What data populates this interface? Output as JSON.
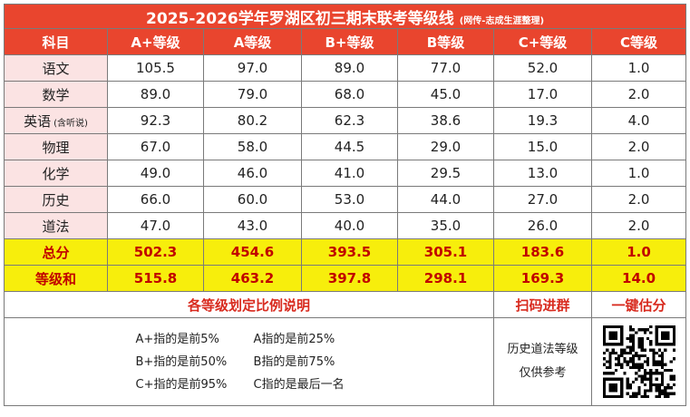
{
  "title": "2025-2026学年罗湖区初三期末联考等级线",
  "title_note": "(网传-志成生涯整理)",
  "headers": [
    "科目",
    "A+等级",
    "A等级",
    "B+等级",
    "B等级",
    "C+等级",
    "C等级"
  ],
  "rows": [
    {
      "subject": "语文",
      "subject_note": "",
      "values": [
        "105.5",
        "97.0",
        "89.0",
        "77.0",
        "52.0",
        "1.0"
      ]
    },
    {
      "subject": "数学",
      "subject_note": "",
      "values": [
        "89.0",
        "79.0",
        "68.0",
        "45.0",
        "17.0",
        "2.0"
      ]
    },
    {
      "subject": "英语",
      "subject_note": "(含听说)",
      "values": [
        "92.3",
        "80.2",
        "62.3",
        "38.6",
        "19.3",
        "4.0"
      ]
    },
    {
      "subject": "物理",
      "subject_note": "",
      "values": [
        "67.0",
        "58.0",
        "44.5",
        "29.0",
        "15.0",
        "2.0"
      ]
    },
    {
      "subject": "化学",
      "subject_note": "",
      "values": [
        "49.0",
        "46.0",
        "41.0",
        "29.5",
        "13.0",
        "1.0"
      ]
    },
    {
      "subject": "历史",
      "subject_note": "",
      "values": [
        "66.0",
        "60.0",
        "53.0",
        "44.0",
        "27.0",
        "2.0"
      ]
    },
    {
      "subject": "道法",
      "subject_note": "",
      "values": [
        "47.0",
        "43.0",
        "40.0",
        "35.0",
        "26.0",
        "2.0"
      ]
    }
  ],
  "totals": {
    "label": "总分",
    "values": [
      "502.3",
      "454.6",
      "393.5",
      "305.1",
      "183.6",
      "1.0"
    ]
  },
  "grade_sum": {
    "label": "等级和",
    "values": [
      "515.8",
      "463.2",
      "397.8",
      "298.1",
      "169.3",
      "14.0"
    ]
  },
  "footer": {
    "ratio_heading": "各等级划定比例说明",
    "scan_label": "扫码进群",
    "estimate_label": "一键估分",
    "ratio_notes": [
      [
        "A+指的是前5%",
        "A指的是前25%"
      ],
      [
        "B+指的是前50%",
        "B指的是前75%"
      ],
      [
        "C+指的是前95%",
        "C指的是最后一名"
      ]
    ],
    "history_note_line1": "历史道法等级",
    "history_note_line2": "仅供参考"
  },
  "colors": {
    "header_red": "#e9452e",
    "subject_pink": "#fbe3e3",
    "sum_yellow": "#f7ee0c",
    "sum_text": "#c00000"
  }
}
